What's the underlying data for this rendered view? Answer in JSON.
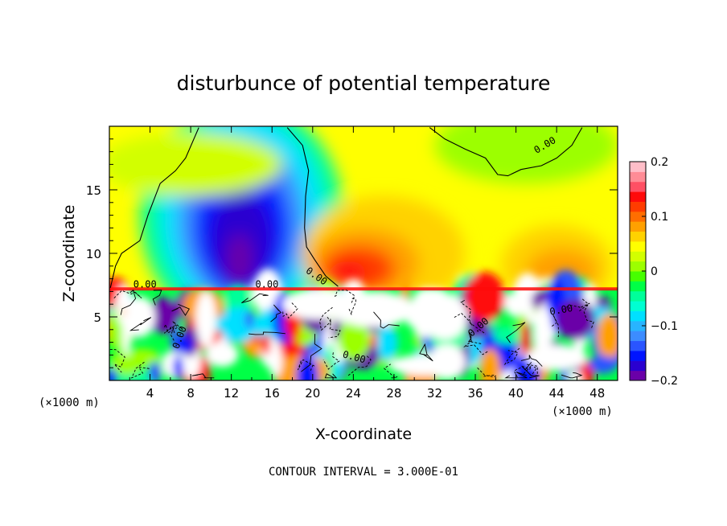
{
  "chart_data": {
    "type": "heatmap",
    "title": "disturbunce of potential temperature",
    "xlabel": "X-coordinate",
    "ylabel": "Z-coordinate",
    "x_unit": "(×1000 m)",
    "footer": "CONTOUR INTERVAL = 3.000E-01",
    "xlim": [
      0,
      50
    ],
    "ylim": [
      0,
      20
    ],
    "x_ticks": [
      4,
      8,
      12,
      16,
      20,
      24,
      28,
      32,
      36,
      40,
      44,
      48
    ],
    "y_ticks": [
      5,
      10,
      15
    ],
    "colorbar": {
      "min": -0.2,
      "max": 0.2,
      "ticks": [
        -0.2,
        -0.1,
        0,
        0.1,
        0.2
      ],
      "tick_labels": [
        "−0.2",
        "−0.1",
        "0",
        "0.1",
        "0.2"
      ],
      "colors": [
        "#6a00a8",
        "#2a00d0",
        "#0014ff",
        "#2a55ff",
        "#3c8cff",
        "#28b4ff",
        "#00e0ff",
        "#00ffd2",
        "#00ff9a",
        "#00ff46",
        "#46ff00",
        "#9cff00",
        "#d2ff00",
        "#ffff00",
        "#ffd200",
        "#ffa000",
        "#ff6e00",
        "#ff3c00",
        "#ff0a0a",
        "#ff5064",
        "#ff8c96",
        "#ffbec8"
      ]
    },
    "contour_labels": [
      "0.00",
      "0.00",
      "0.00",
      "0.00",
      "0.00",
      "0.00",
      "0.00",
      "0.00"
    ],
    "fields": {
      "background_value": 0.04,
      "features": [
        {
          "name": "cold anomaly upper left",
          "x": 12.5,
          "z": 12.5,
          "value": -0.19
        },
        {
          "name": "warm anomaly upper center",
          "x": 25,
          "z": 9,
          "value": 0.13
        },
        {
          "name": "warm anomaly right",
          "x": 44,
          "z": 9,
          "value": 0.08
        },
        {
          "name": "weak warm region upper right",
          "x": 30,
          "z": 15,
          "value": 0.06
        },
        {
          "name": "near-zero region top right",
          "x": 40,
          "z": 18,
          "value": 0.0
        }
      ],
      "boundary_layer_top_z": 7.2
    }
  }
}
